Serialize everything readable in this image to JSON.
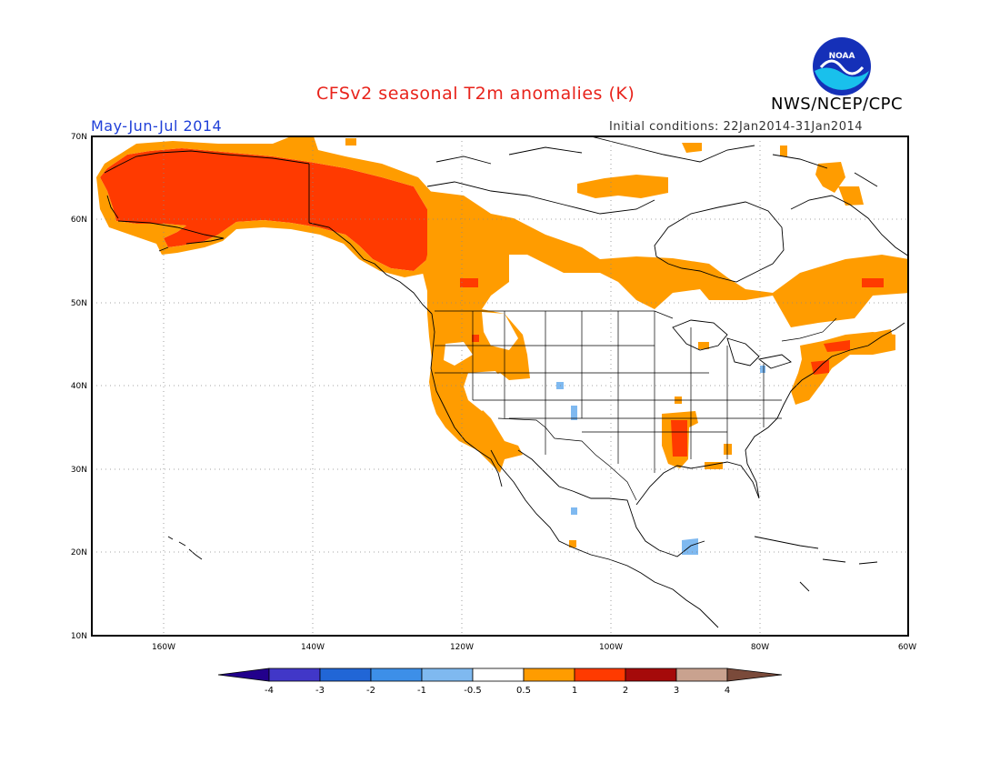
{
  "title": "CFSv2 seasonal T2m anomalies (K)",
  "organization": "NWS/NCEP/CPC",
  "logo_text": "NOAA",
  "season": "May-Jun-Jul 2014",
  "initial_conditions": "Initial conditions: 22Jan2014-31Jan2014",
  "map": {
    "projection": "lat-lon",
    "lon_range": [
      -172,
      -60
    ],
    "lat_range": [
      10,
      70
    ],
    "grid": "dotted",
    "lat_labels": [
      "70N",
      "60N",
      "50N",
      "40N",
      "30N",
      "20N",
      "10N"
    ],
    "lon_labels": [
      "160W",
      "140W",
      "120W",
      "100W",
      "80W",
      "60W"
    ]
  },
  "colorbar": {
    "tick_labels": [
      "-4",
      "-3",
      "-2",
      "-1",
      "-0.5",
      "0.5",
      "1",
      "2",
      "3",
      "4"
    ],
    "colors": [
      "#22008c",
      "#4137c8",
      "#2166d6",
      "#3d8fe8",
      "#7fb9f0",
      "#ffffff",
      "#ff9c00",
      "#ff3a00",
      "#a50a0a",
      "#c9a28f",
      "#7a4a3a"
    ]
  },
  "anomaly_regions": [
    {
      "name": "alaska",
      "category": "1 to 2",
      "color": "#ff3a00"
    },
    {
      "name": "western-canada",
      "category": "0.5 to 1",
      "color": "#ff9c00"
    },
    {
      "name": "west-coast-us",
      "category": "0.5 to 1",
      "color": "#ff9c00"
    },
    {
      "name": "eastern-canada",
      "category": "0.5 to 1",
      "color": "#ff9c00"
    },
    {
      "name": "northeast-us",
      "category": "1 to 2",
      "color": "#ff3a00"
    },
    {
      "name": "lower-mississippi",
      "category": "1 to 2",
      "color": "#ff3a00"
    },
    {
      "name": "southwest-us-cells",
      "category": "-1 to -0.5",
      "color": "#7fb9f0"
    },
    {
      "name": "yucatan",
      "category": "-1 to -0.5",
      "color": "#7fb9f0"
    }
  ]
}
